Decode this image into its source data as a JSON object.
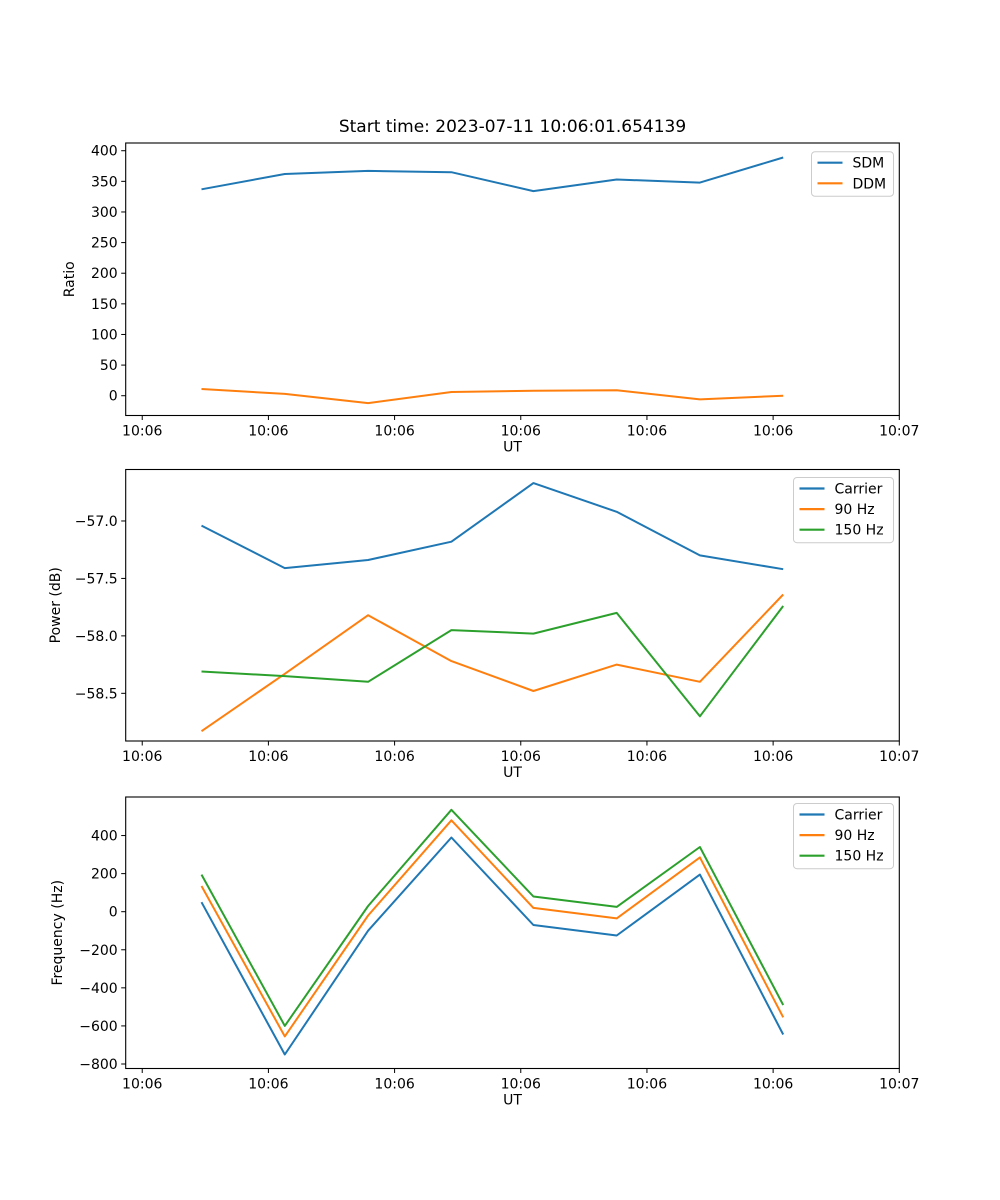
{
  "figure": {
    "title": "Start time: 2023-07-11 10:06:01.654139",
    "background": "#ffffff",
    "spine_color": "#000000",
    "legend_border_color": "#cccccc"
  },
  "chart_data": [
    {
      "type": "line",
      "id": "ratio",
      "title": "Start time: 2023-07-11 10:06:01.654139",
      "xlabel": "UT",
      "ylabel": "Ratio",
      "grid": false,
      "legend_position": "upper right",
      "xlim": [
        -1.31,
        60
      ],
      "ylim": [
        -32.3,
        412.6
      ],
      "x": [
        4.7,
        11.3,
        17.9,
        24.5,
        31.0,
        37.6,
        44.2,
        50.8
      ],
      "xticks": [
        {
          "v": 0,
          "label": "10:06"
        },
        {
          "v": 10,
          "label": "10:06"
        },
        {
          "v": 20,
          "label": "10:06"
        },
        {
          "v": 30,
          "label": "10:06"
        },
        {
          "v": 40,
          "label": "10:06"
        },
        {
          "v": 50,
          "label": "10:06"
        },
        {
          "v": 60,
          "label": "10:07"
        }
      ],
      "yticks": [
        {
          "v": 0,
          "label": "0"
        },
        {
          "v": 50,
          "label": "50"
        },
        {
          "v": 100,
          "label": "100"
        },
        {
          "v": 150,
          "label": "150"
        },
        {
          "v": 200,
          "label": "200"
        },
        {
          "v": 250,
          "label": "250"
        },
        {
          "v": 300,
          "label": "300"
        },
        {
          "v": 350,
          "label": "350"
        },
        {
          "v": 400,
          "label": "400"
        }
      ],
      "series": [
        {
          "name": "SDM",
          "color": "#1f77b4",
          "values": [
            337,
            362,
            367,
            365,
            334,
            353,
            348,
            389
          ]
        },
        {
          "name": "DDM",
          "color": "#ff7f0e",
          "values": [
            11,
            3,
            -12,
            6,
            8,
            9,
            -6,
            0
          ]
        }
      ]
    },
    {
      "type": "line",
      "id": "power",
      "title": "",
      "xlabel": "UT",
      "ylabel": "Power (dB)",
      "grid": false,
      "legend_position": "upper right",
      "xlim": [
        -1.31,
        60
      ],
      "ylim": [
        -58.915,
        -56.552
      ],
      "x": [
        4.7,
        11.3,
        17.9,
        24.5,
        31.0,
        37.6,
        44.2,
        50.8
      ],
      "xticks": [
        {
          "v": 0,
          "label": "10:06"
        },
        {
          "v": 10,
          "label": "10:06"
        },
        {
          "v": 20,
          "label": "10:06"
        },
        {
          "v": 30,
          "label": "10:06"
        },
        {
          "v": 40,
          "label": "10:06"
        },
        {
          "v": 50,
          "label": "10:06"
        },
        {
          "v": 60,
          "label": "10:07"
        }
      ],
      "yticks": [
        {
          "v": -57.0,
          "label": "−57.0"
        },
        {
          "v": -57.5,
          "label": "−57.5"
        },
        {
          "v": -58.0,
          "label": "−58.0"
        },
        {
          "v": -58.5,
          "label": "−58.5"
        }
      ],
      "series": [
        {
          "name": "Carrier",
          "color": "#1f77b4",
          "values": [
            -57.04,
            -57.41,
            -57.34,
            -57.18,
            -56.67,
            -56.92,
            -57.3,
            -57.42
          ]
        },
        {
          "name": "90 Hz",
          "color": "#ff7f0e",
          "values": [
            -58.83,
            -58.33,
            -57.82,
            -58.22,
            -58.48,
            -58.25,
            -58.4,
            -57.64
          ]
        },
        {
          "name": "150 Hz",
          "color": "#2ca02c",
          "values": [
            -58.31,
            -58.35,
            -58.4,
            -57.95,
            -57.98,
            -57.8,
            -58.7,
            -57.74
          ]
        }
      ]
    },
    {
      "type": "line",
      "id": "frequency",
      "title": "",
      "xlabel": "UT",
      "ylabel": "Frequency (Hz)",
      "grid": false,
      "legend_position": "upper right",
      "xlim": [
        -1.31,
        60
      ],
      "ylim": [
        -823.7,
        602.5
      ],
      "x": [
        4.7,
        11.3,
        17.9,
        24.5,
        31.0,
        37.6,
        44.2,
        50.8
      ],
      "xticks": [
        {
          "v": 0,
          "label": "10:06"
        },
        {
          "v": 10,
          "label": "10:06"
        },
        {
          "v": 20,
          "label": "10:06"
        },
        {
          "v": 30,
          "label": "10:06"
        },
        {
          "v": 40,
          "label": "10:06"
        },
        {
          "v": 50,
          "label": "10:06"
        },
        {
          "v": 60,
          "label": "10:07"
        }
      ],
      "yticks": [
        {
          "v": 400,
          "label": "400"
        },
        {
          "v": 200,
          "label": "200"
        },
        {
          "v": 0,
          "label": "0"
        },
        {
          "v": -200,
          "label": "−200"
        },
        {
          "v": -400,
          "label": "−400"
        },
        {
          "v": -600,
          "label": "−600"
        },
        {
          "v": -800,
          "label": "−800"
        }
      ],
      "series": [
        {
          "name": "Carrier",
          "color": "#1f77b4",
          "values": [
            50,
            -750,
            -100,
            390,
            -70,
            -125,
            195,
            -645
          ]
        },
        {
          "name": "90 Hz",
          "color": "#ff7f0e",
          "values": [
            135,
            -655,
            -20,
            480,
            20,
            -35,
            285,
            -555
          ]
        },
        {
          "name": "150 Hz",
          "color": "#2ca02c",
          "values": [
            195,
            -600,
            30,
            535,
            80,
            25,
            340,
            -490
          ]
        }
      ]
    }
  ]
}
